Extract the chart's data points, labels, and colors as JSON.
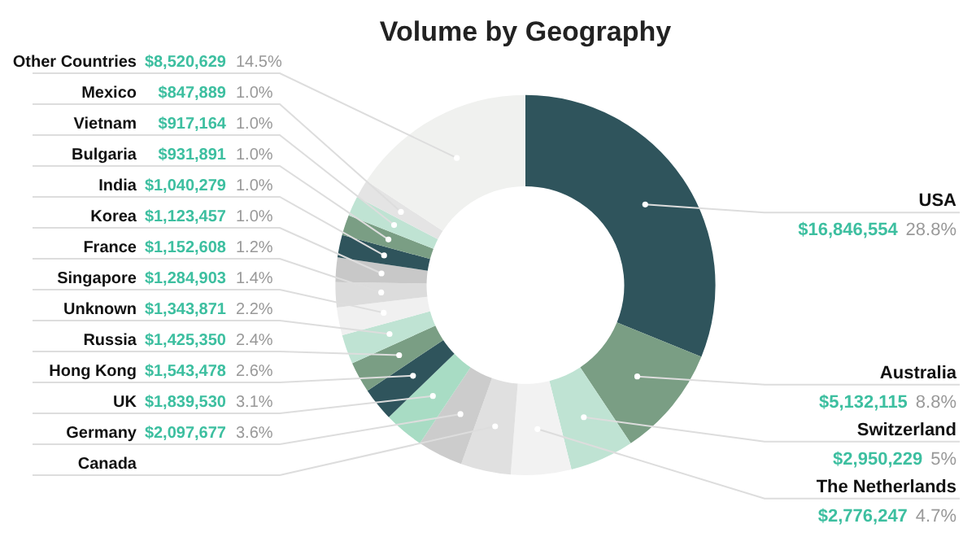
{
  "chart_data": {
    "type": "donut",
    "title": "Volume by Geography",
    "categories": [
      "USA",
      "Australia",
      "Switzerland",
      "The Netherlands",
      "Canada",
      "Germany",
      "UK",
      "Hong Kong",
      "Russia",
      "Unknown",
      "Singapore",
      "France",
      "Korea",
      "India",
      "Bulgaria",
      "Vietnam",
      "Mexico",
      "Other Countries"
    ],
    "values": [
      16846554,
      5132115,
      2950229,
      2776247,
      2300000,
      2097677,
      1839530,
      1543478,
      1425350,
      1343871,
      1284903,
      1152608,
      1123457,
      1040279,
      931891,
      917164,
      847889,
      8520629
    ],
    "value_labels": [
      "$16,846,554 28.8%",
      "$5,132,115 8.8%",
      "$2,950,229 5%",
      "$2,776,247 4.7%",
      null,
      "$2,097,677 3.6%",
      "$1,839,530 3.1%",
      "$1,543,478 2.6%",
      "$1,425,350 2.4%",
      "$1,343,871 2.2%",
      "$1,284,903 1.4%",
      "$1,152,608 1.2%",
      "$1,123,457 1.0%",
      "$1,040,279 1.0%",
      "$931,891 1.0%",
      "$917,164 1.0%",
      "$847,889 1.0%",
      "$8,520,629 14.5%"
    ],
    "colors": [
      "#2f545c",
      "#7a9e84",
      "#bfe3d3",
      "#f2f2f2",
      "#e0e0e0",
      "#cccccc",
      "#a8dcc4",
      "#2f545c",
      "#7a9e84",
      "#bfe3d3",
      "#f0f0f0",
      "#dcdcdc",
      "#c8c8c8",
      "#2f545c",
      "#7a9e84",
      "#bfe3d3",
      "#e4e4e4",
      "#f0f1ef"
    ],
    "legend": false
  }
}
